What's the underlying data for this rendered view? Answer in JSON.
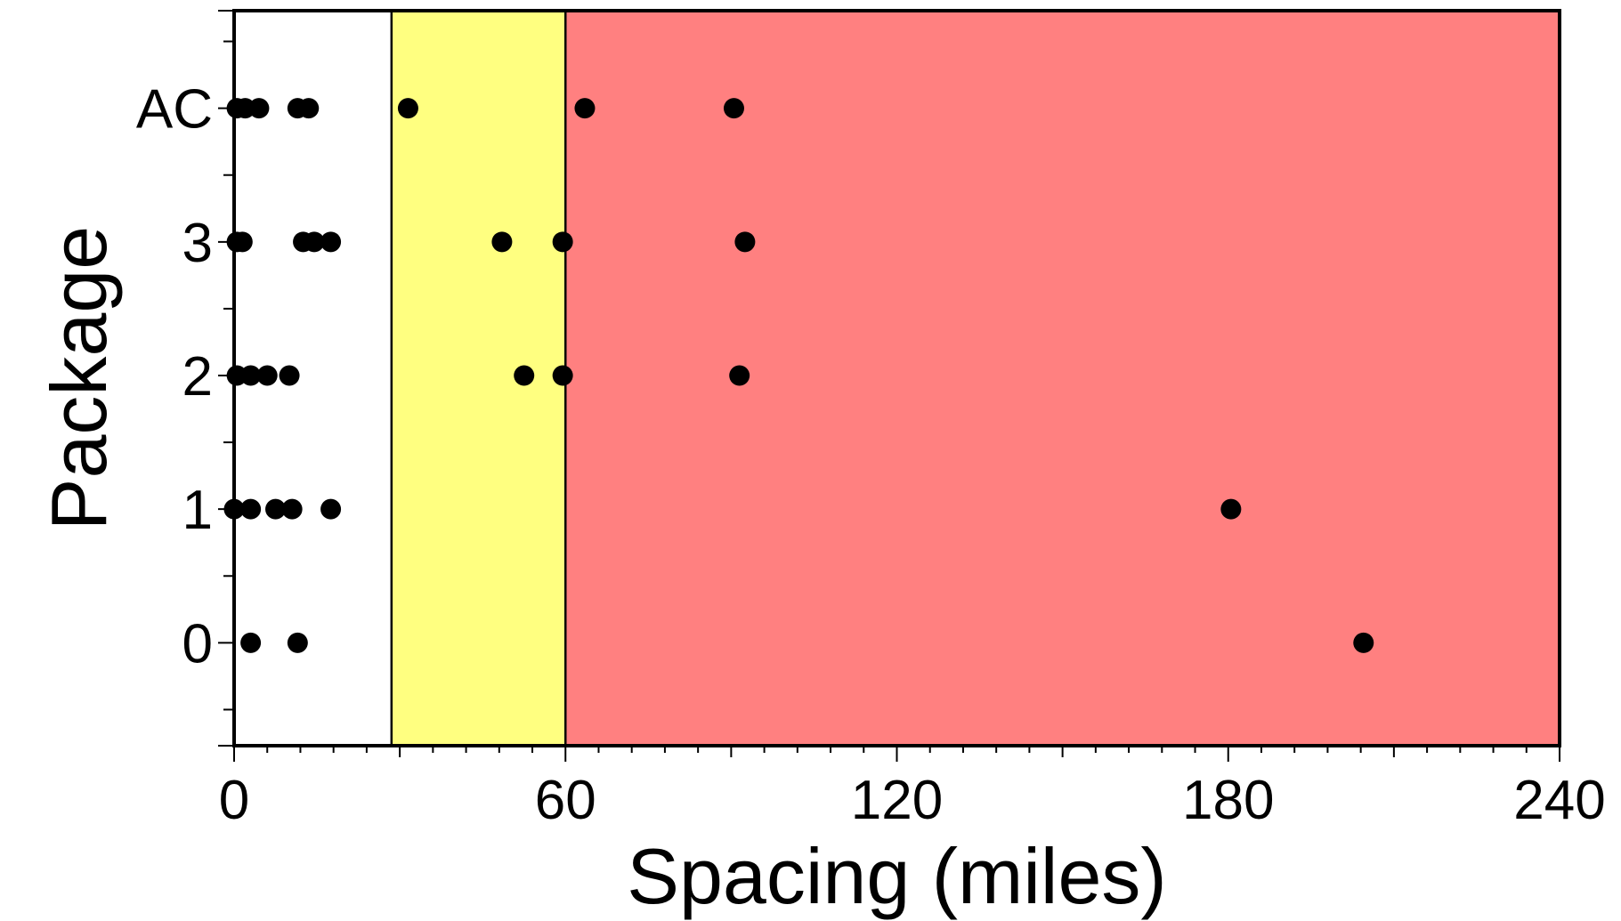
{
  "chart_data": {
    "type": "scatter",
    "title": "",
    "xlabel": "Spacing (miles)",
    "ylabel": "Package",
    "xlim": [
      0,
      240
    ],
    "xticks": [
      0,
      60,
      120,
      180,
      240
    ],
    "xtick_labels": [
      "0",
      "60",
      "120",
      "180",
      "240"
    ],
    "categories": [
      "0",
      "1",
      "2",
      "3",
      "AC"
    ],
    "grid": false,
    "legend": "none",
    "bands": [
      {
        "from": 0,
        "to": 28.5,
        "color": "#ffffff"
      },
      {
        "from": 28.5,
        "to": 60,
        "color": "#ffff80"
      },
      {
        "from": 60,
        "to": 240,
        "color": "#ff8080"
      }
    ],
    "series": [
      {
        "category": "0",
        "x": [
          3,
          11.5,
          204.5
        ]
      },
      {
        "category": "1",
        "x": [
          0,
          3,
          7.5,
          10.5,
          17.5,
          180.5
        ]
      },
      {
        "category": "2",
        "x": [
          0.5,
          3,
          6,
          10,
          52.5,
          59.5,
          91.5
        ]
      },
      {
        "category": "3",
        "x": [
          0.5,
          1.5,
          12.5,
          14.5,
          17.5,
          48.5,
          59.5,
          92.5
        ]
      },
      {
        "category": "AC",
        "x": [
          0.5,
          2,
          4.5,
          11.5,
          13.5,
          31.5,
          63.5,
          90.5
        ]
      }
    ],
    "marker_color": "#000000"
  }
}
